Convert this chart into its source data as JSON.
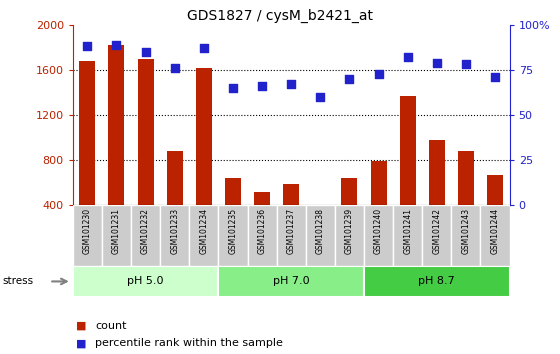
{
  "title": "GDS1827 / cysM_b2421_at",
  "categories": [
    "GSM101230",
    "GSM101231",
    "GSM101232",
    "GSM101233",
    "GSM101234",
    "GSM101235",
    "GSM101236",
    "GSM101237",
    "GSM101238",
    "GSM101239",
    "GSM101240",
    "GSM101241",
    "GSM101242",
    "GSM101243",
    "GSM101244"
  ],
  "counts": [
    1680,
    1820,
    1700,
    880,
    1620,
    640,
    520,
    590,
    370,
    640,
    790,
    1370,
    980,
    880,
    670
  ],
  "percentiles": [
    88,
    89,
    85,
    76,
    87,
    65,
    66,
    67,
    60,
    70,
    73,
    82,
    79,
    78,
    71
  ],
  "bar_color": "#bb2200",
  "dot_color": "#2222cc",
  "ylim_left": [
    400,
    2000
  ],
  "ylim_right": [
    0,
    100
  ],
  "yticks_left": [
    400,
    800,
    1200,
    1600,
    2000
  ],
  "yticks_right": [
    0,
    25,
    50,
    75,
    100
  ],
  "ytick_labels_right": [
    "0",
    "25",
    "50",
    "75",
    "100%"
  ],
  "groups": [
    {
      "label": "pH 5.0",
      "start": 0,
      "end": 5,
      "color": "#ccffcc"
    },
    {
      "label": "pH 7.0",
      "start": 5,
      "end": 10,
      "color": "#88ee88"
    },
    {
      "label": "pH 8.7",
      "start": 10,
      "end": 15,
      "color": "#44cc44"
    }
  ],
  "stress_label": "stress",
  "legend_count_label": "count",
  "legend_pct_label": "percentile rank within the sample",
  "grid_color": "black",
  "bar_width": 0.55,
  "xticklabel_area_color": "#cccccc",
  "fig_width": 5.6,
  "fig_height": 3.54,
  "dpi": 100
}
